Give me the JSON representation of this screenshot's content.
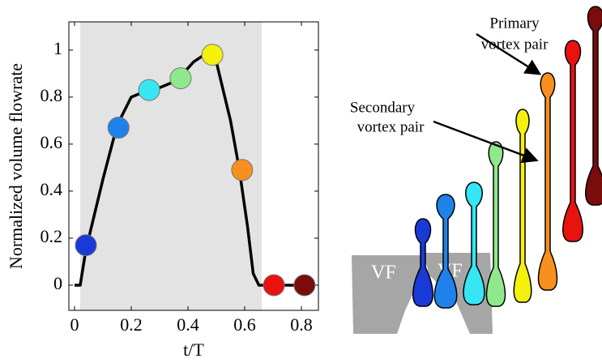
{
  "chart_data": {
    "type": "line",
    "xlabel": "t/T",
    "ylabel": "Normalized volume flowrate",
    "xlim": [
      -0.02,
      0.86
    ],
    "ylim": [
      -0.107,
      1.12
    ],
    "xticks": [
      0,
      0.2,
      0.4,
      0.6,
      0.8
    ],
    "yticks": [
      0,
      0.2,
      0.4,
      0.6,
      0.8,
      1
    ],
    "shaded_x": [
      0.02,
      0.66
    ],
    "line": {
      "color": "#000000",
      "x": [
        0,
        0.02,
        0.04,
        0.1,
        0.15,
        0.2,
        0.26,
        0.3,
        0.36,
        0.42,
        0.47,
        0.5,
        0.55,
        0.58,
        0.61,
        0.63,
        0.65,
        0.78
      ],
      "values": [
        0,
        0,
        0.15,
        0.45,
        0.68,
        0.8,
        0.83,
        0.84,
        0.87,
        0.95,
        0.99,
        0.95,
        0.7,
        0.5,
        0.25,
        0.05,
        0,
        0
      ]
    },
    "markers": {
      "x": [
        0.04,
        0.155,
        0.263,
        0.374,
        0.486,
        0.591,
        0.703,
        0.811
      ],
      "values": [
        0.17,
        0.67,
        0.83,
        0.88,
        0.98,
        0.49,
        0,
        0
      ],
      "colors": [
        "#1a3ad8",
        "#1f82ea",
        "#36e6f2",
        "#8fe98c",
        "#f5f00c",
        "#f7901e",
        "#e8120f",
        "#7a0c0c"
      ]
    }
  },
  "diagram": {
    "primary_label": [
      "Primary",
      "vortex pair"
    ],
    "secondary_label": [
      "Secondary",
      "vortex pair"
    ],
    "valve_labels": [
      "VF",
      "VF"
    ]
  }
}
